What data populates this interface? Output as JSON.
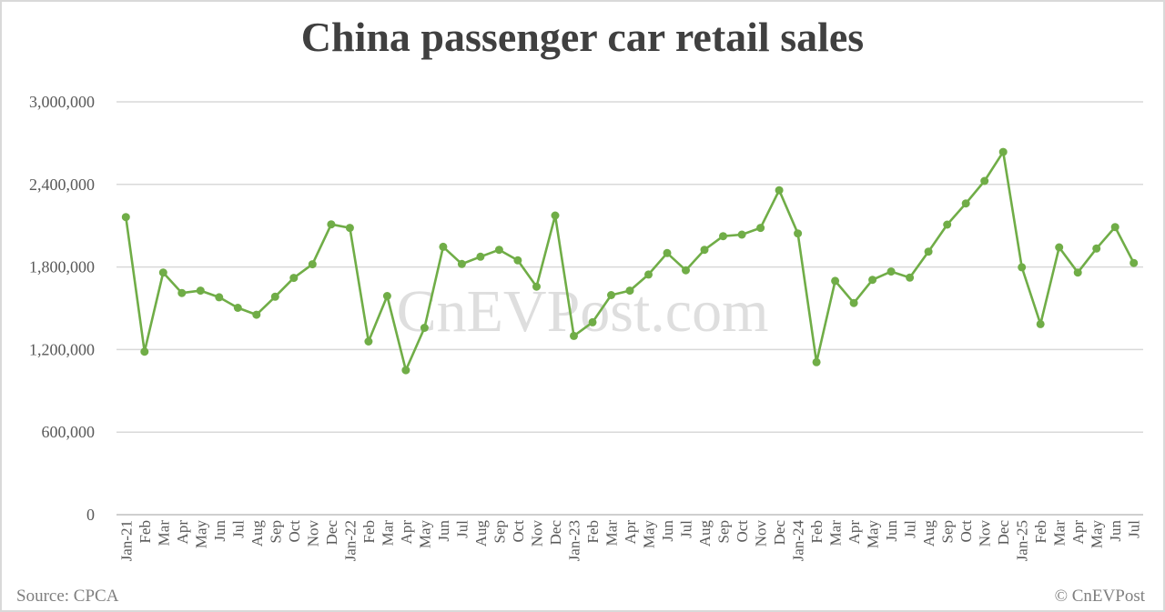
{
  "chart_data": {
    "type": "line",
    "title": "China passenger car retail sales",
    "xlabel": "",
    "ylabel": "",
    "ylim": [
      0,
      3000000
    ],
    "yticks": [
      0,
      600000,
      1200000,
      1800000,
      2400000,
      3000000
    ],
    "ytick_labels": [
      "0",
      "600,000",
      "1,200,000",
      "1,800,000",
      "2,400,000",
      "3,000,000"
    ],
    "grid": true,
    "legend": "none",
    "categories": [
      "Jan-21",
      "Feb",
      "Mar",
      "Apr",
      "May",
      "Jun",
      "Jul",
      "Aug",
      "Sep",
      "Oct",
      "Nov",
      "Dec",
      "Jan-22",
      "Feb",
      "Mar",
      "Apr",
      "May",
      "Jun",
      "Jul",
      "Aug",
      "Sep",
      "Oct",
      "Nov",
      "Dec",
      "Jan-23",
      "Feb",
      "Mar",
      "Apr",
      "May",
      "Jun",
      "Jul",
      "Aug",
      "Sep",
      "Oct",
      "Nov",
      "Dec",
      "Jan-24",
      "Feb",
      "Mar",
      "Apr",
      "May",
      "Jun",
      "Jul",
      "Aug",
      "Sep",
      "Oct",
      "Nov",
      "Dec",
      "Jan-25",
      "Feb",
      "Mar",
      "Apr",
      "May",
      "Jun",
      "Jul"
    ],
    "series": [
      {
        "name": "Retail sales",
        "color": "#70ad47",
        "values": [
          2163000,
          1185000,
          1760000,
          1611000,
          1628000,
          1580000,
          1503000,
          1453000,
          1584000,
          1721000,
          1820000,
          2110000,
          2084000,
          1259000,
          1589000,
          1050000,
          1358000,
          1947000,
          1822000,
          1875000,
          1925000,
          1848000,
          1657000,
          2174000,
          1299000,
          1398000,
          1596000,
          1628000,
          1745000,
          1901000,
          1776000,
          1925000,
          2024000,
          2035000,
          2084000,
          2358000,
          2044000,
          1108000,
          1699000,
          1538000,
          1707000,
          1767000,
          1723000,
          1912000,
          2108000,
          2262000,
          2425000,
          2636000,
          1798000,
          1385000,
          1943000,
          1760000,
          1934000,
          2090000,
          1829000
        ]
      }
    ]
  },
  "header": {
    "title": "China passenger car retail sales"
  },
  "footer": {
    "source": "Source: CPCA",
    "copyright": "© CnEVPost"
  },
  "watermark": "CnEVPost.com",
  "colors": {
    "line": "#70ad47",
    "grid": "#d9d9d9",
    "text": "#595959",
    "title": "#404040"
  }
}
